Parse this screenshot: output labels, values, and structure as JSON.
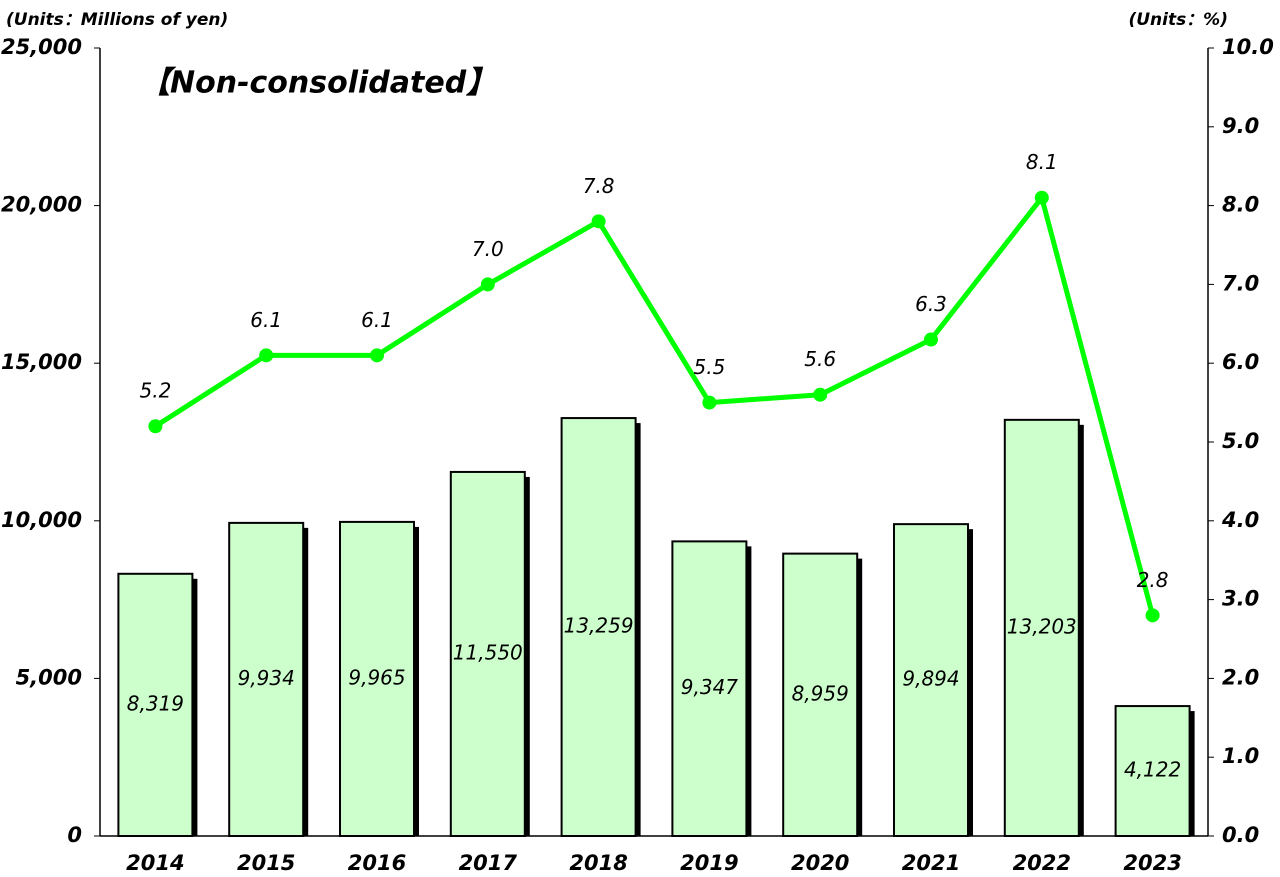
{
  "chart_data": {
    "type": "bar_line",
    "title": "【Non-consolidated】",
    "y_unit": "(Units：Millions of yen)",
    "y2_unit": "(Units：%)",
    "categories": [
      "2014",
      "2015",
      "2016",
      "2017",
      "2018",
      "2019",
      "2020",
      "2021",
      "2022",
      "2023"
    ],
    "series": [
      {
        "type": "bar",
        "color": "#ccffcc",
        "values": [
          8319,
          9934,
          9965,
          11550,
          13259,
          9347,
          8959,
          9894,
          13203,
          4122
        ],
        "value_labels": [
          "8,319",
          "9,934",
          "9,965",
          "11,550",
          "13,259",
          "9,347",
          "8,959",
          "9,894",
          "13,203",
          "4,122"
        ]
      },
      {
        "type": "line",
        "axis": "y2",
        "color": "#00ff00",
        "values": [
          5.2,
          6.1,
          6.1,
          7.0,
          7.8,
          5.5,
          5.6,
          6.3,
          8.1,
          2.8
        ],
        "value_labels": [
          "5.2",
          "6.1",
          "6.1",
          "7.0",
          "7.8",
          "5.5",
          "5.6",
          "6.3",
          "8.1",
          "2.8"
        ]
      }
    ],
    "ylim": [
      0,
      25000
    ],
    "yticks": [
      0,
      {
        "value": 5000,
        "label": "5,000"
      },
      {
        "value": 10000,
        "label": "10,000"
      },
      {
        "value": 15000,
        "label": "15,000"
      },
      {
        "value": 20000,
        "label": "20,000"
      },
      {
        "value": 25000,
        "label": "25,000"
      }
    ],
    "y2lim": [
      0,
      10
    ],
    "y2ticks": [
      {
        "value": 0,
        "label": "0.0"
      },
      {
        "value": 1,
        "label": "1.0"
      },
      {
        "value": 2,
        "label": "2.0"
      },
      {
        "value": 3,
        "label": "3.0"
      },
      {
        "value": 4,
        "label": "4.0"
      },
      {
        "value": 5,
        "label": "5.0"
      },
      {
        "value": 6,
        "label": "6.0"
      },
      {
        "value": 7,
        "label": "7.0"
      },
      {
        "value": 8,
        "label": "8.0"
      },
      {
        "value": 9,
        "label": "9.0"
      },
      {
        "value": 10,
        "label": "10.0"
      }
    ]
  }
}
